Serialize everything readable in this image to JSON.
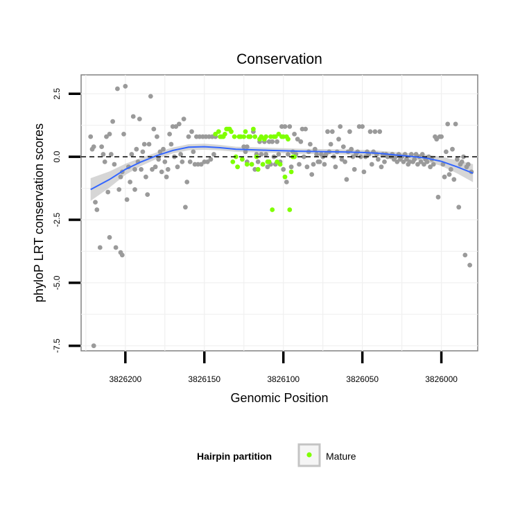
{
  "chart_data": {
    "type": "scatter",
    "title": "Conservation",
    "xlabel": "Genomic Position",
    "ylabel": "phyloP LRT conservation scores",
    "x_reversed": true,
    "xlim": [
      3825977,
      3826228
    ],
    "ylim": [
      -7.7,
      3.25
    ],
    "x_ticks": [
      3826200,
      3826150,
      3826100,
      3826050,
      3826000
    ],
    "x_tick_labels": [
      "3826200",
      "3826150",
      "3826100",
      "3826050",
      "3826000"
    ],
    "y_ticks": [
      -7.5,
      -5.0,
      -2.5,
      0.0,
      2.5
    ],
    "y_tick_labels": [
      "-7.5",
      "-5.0",
      "-2.5",
      "0.0",
      "2.5"
    ],
    "reference_line": {
      "y": 0,
      "style": "dashed"
    },
    "grid": true,
    "legend": {
      "placement": "bottom",
      "title": "Hairpin partition",
      "entries": [
        {
          "label": "Mature",
          "color": "#7fff00"
        }
      ]
    },
    "colors": {
      "other": "#9a9a9a",
      "mature": "#7fff00",
      "smooth": "#3366ff",
      "ribbon": "#c8c8c8"
    },
    "series": [
      {
        "name": "",
        "color": "#9a9a9a",
        "points": [
          [
            3826222,
            0.8
          ],
          [
            3826221,
            0.3
          ],
          [
            3826220,
            0.4
          ],
          [
            3826220,
            -7.5
          ],
          [
            3826219,
            -1.8
          ],
          [
            3826218,
            -2.1
          ],
          [
            3826216,
            -3.6
          ],
          [
            3826215,
            0.4
          ],
          [
            3826214,
            0.1
          ],
          [
            3826213,
            -0.2
          ],
          [
            3826212,
            0.8
          ],
          [
            3826211,
            -1.4
          ],
          [
            3826210,
            0.9
          ],
          [
            3826210,
            -3.2
          ],
          [
            3826209,
            0.1
          ],
          [
            3826208,
            1.4
          ],
          [
            3826207,
            -0.3
          ],
          [
            3826206,
            -3.6
          ],
          [
            3826205,
            2.7
          ],
          [
            3826204,
            -1.3
          ],
          [
            3826203,
            -0.8
          ],
          [
            3826203,
            -3.8
          ],
          [
            3826202,
            -0.6
          ],
          [
            3826202,
            -3.9
          ],
          [
            3826201,
            0.9
          ],
          [
            3826200,
            2.8
          ],
          [
            3826199,
            -1.7
          ],
          [
            3826198,
            -0.4
          ],
          [
            3826197,
            -1.0
          ],
          [
            3826196,
            0.1
          ],
          [
            3826195,
            1.6
          ],
          [
            3826194,
            -0.5
          ],
          [
            3826194,
            -1.3
          ],
          [
            3826193,
            0.3
          ],
          [
            3826192,
            -0.2
          ],
          [
            3826191,
            1.5
          ],
          [
            3826190,
            -0.5
          ],
          [
            3826189,
            0.2
          ],
          [
            3826188,
            0.5
          ],
          [
            3826187,
            -0.8
          ],
          [
            3826186,
            -1.5
          ],
          [
            3826185,
            0.5
          ],
          [
            3826184,
            2.4
          ],
          [
            3826183,
            -0.5
          ],
          [
            3826182,
            1.1
          ],
          [
            3826181,
            -0.4
          ],
          [
            3826180,
            0.8
          ],
          [
            3826179,
            -0.1
          ],
          [
            3826178,
            0.2
          ],
          [
            3826177,
            -0.6
          ],
          [
            3826176,
            0.3
          ],
          [
            3826175,
            -0.2
          ],
          [
            3826174,
            -0.8
          ],
          [
            3826173,
            -0.5
          ],
          [
            3826172,
            0.9
          ],
          [
            3826171,
            0.5
          ],
          [
            3826170,
            1.2
          ],
          [
            3826169,
            0.0
          ],
          [
            3826168,
            1.2
          ],
          [
            3826167,
            -0.4
          ],
          [
            3826166,
            1.3
          ],
          [
            3826165,
            0.1
          ],
          [
            3826164,
            -0.2
          ],
          [
            3826163,
            1.5
          ],
          [
            3826162,
            -2.0
          ],
          [
            3826161,
            -1.0
          ],
          [
            3826160,
            0.8
          ],
          [
            3826159,
            -0.2
          ],
          [
            3826158,
            1.0
          ],
          [
            3826157,
            0.2
          ],
          [
            3826156,
            -0.3
          ],
          [
            3826155,
            0.8
          ],
          [
            3826154,
            -0.3
          ],
          [
            3826153,
            0.8
          ],
          [
            3826152,
            -0.3
          ],
          [
            3826151,
            0.8
          ],
          [
            3826150,
            -0.2
          ],
          [
            3826149,
            0.8
          ],
          [
            3826148,
            -0.2
          ],
          [
            3826147,
            0.8
          ],
          [
            3826146,
            -0.1
          ],
          [
            3826145,
            0.8
          ],
          [
            3826144,
            0.1
          ],
          [
            3826143,
            0.8
          ],
          [
            3826125,
            0.4
          ],
          [
            3826124,
            0.2
          ],
          [
            3826123,
            -0.2
          ],
          [
            3826123,
            0.4
          ],
          [
            3826121,
            0.8
          ],
          [
            3826120,
            -0.3
          ],
          [
            3826119,
            1.0
          ],
          [
            3826118,
            -0.5
          ],
          [
            3826117,
            0.1
          ],
          [
            3826116,
            -0.2
          ],
          [
            3826115,
            0.6
          ],
          [
            3826114,
            0.1
          ],
          [
            3826113,
            -0.3
          ],
          [
            3826112,
            0.6
          ],
          [
            3826111,
            0.1
          ],
          [
            3826110,
            -0.4
          ],
          [
            3826109,
            0.6
          ],
          [
            3826108,
            -0.3
          ],
          [
            3826107,
            0.6
          ],
          [
            3826106,
            0.0
          ],
          [
            3826105,
            -0.3
          ],
          [
            3826104,
            0.6
          ],
          [
            3826103,
            0.1
          ],
          [
            3826102,
            -0.2
          ],
          [
            3826101,
            1.2
          ],
          [
            3826100,
            -0.5
          ],
          [
            3826099,
            1.2
          ],
          [
            3826098,
            -1.0
          ],
          [
            3826097,
            0.1
          ],
          [
            3826096,
            1.2
          ],
          [
            3826095,
            -0.4
          ],
          [
            3826094,
            0.2
          ],
          [
            3826093,
            0.9
          ],
          [
            3826092,
            0.1
          ],
          [
            3826091,
            0.7
          ],
          [
            3826090,
            -0.3
          ],
          [
            3826089,
            0.6
          ],
          [
            3826088,
            1.1
          ],
          [
            3826087,
            0.0
          ],
          [
            3826086,
            1.1
          ],
          [
            3826085,
            -0.4
          ],
          [
            3826084,
            0.2
          ],
          [
            3826083,
            0.5
          ],
          [
            3826082,
            -0.7
          ],
          [
            3826081,
            -0.3
          ],
          [
            3826080,
            0.3
          ],
          [
            3826079,
            0.1
          ],
          [
            3826078,
            -0.2
          ],
          [
            3826077,
            -0.2
          ],
          [
            3826076,
            0.1
          ],
          [
            3826075,
            0.0
          ],
          [
            3826074,
            -0.3
          ],
          [
            3826073,
            0.1
          ],
          [
            3826072,
            1.0
          ],
          [
            3826071,
            0.2
          ],
          [
            3826070,
            0.5
          ],
          [
            3826069,
            1.0
          ],
          [
            3826068,
            0.0
          ],
          [
            3826067,
            -0.4
          ],
          [
            3826066,
            0.2
          ],
          [
            3826065,
            0.7
          ],
          [
            3826064,
            1.2
          ],
          [
            3826063,
            -0.1
          ],
          [
            3826062,
            0.4
          ],
          [
            3826061,
            -0.2
          ],
          [
            3826060,
            -0.9
          ],
          [
            3826059,
            0.2
          ],
          [
            3826058,
            1.0
          ],
          [
            3826057,
            0.3
          ],
          [
            3826056,
            0.0
          ],
          [
            3826055,
            -0.5
          ],
          [
            3826054,
            0.1
          ],
          [
            3826053,
            0.2
          ],
          [
            3826052,
            1.2
          ],
          [
            3826051,
            0.0
          ],
          [
            3826050,
            1.2
          ],
          [
            3826049,
            -0.6
          ],
          [
            3826048,
            0.0
          ],
          [
            3826047,
            0.2
          ],
          [
            3826046,
            0.1
          ],
          [
            3826045,
            1.0
          ],
          [
            3826044,
            -0.3
          ],
          [
            3826043,
            0.2
          ],
          [
            3826042,
            1.0
          ],
          [
            3826041,
            0.1
          ],
          [
            3826040,
            -0.1
          ],
          [
            3826039,
            1.0
          ],
          [
            3826038,
            -0.4
          ],
          [
            3826037,
            0.1
          ],
          [
            3826036,
            -0.2
          ],
          [
            3826035,
            0.1
          ],
          [
            3826034,
            0.0
          ],
          [
            3826032,
            0.0
          ],
          [
            3826031,
            0.1
          ],
          [
            3826030,
            -0.1
          ],
          [
            3826029,
            0.0
          ],
          [
            3826028,
            -0.2
          ],
          [
            3826027,
            0.1
          ],
          [
            3826026,
            -0.1
          ],
          [
            3826025,
            0.0
          ],
          [
            3826024,
            -0.2
          ],
          [
            3826023,
            0.1
          ],
          [
            3826022,
            -0.1
          ],
          [
            3826021,
            -0.3
          ],
          [
            3826020,
            -0.2
          ],
          [
            3826019,
            0.1
          ],
          [
            3826018,
            -0.2
          ],
          [
            3826017,
            -0.1
          ],
          [
            3826016,
            0.1
          ],
          [
            3826015,
            -0.3
          ],
          [
            3826014,
            0.0
          ],
          [
            3826013,
            -0.2
          ],
          [
            3826012,
            0.1
          ],
          [
            3826011,
            -0.3
          ],
          [
            3826010,
            -0.1
          ],
          [
            3826009,
            -0.2
          ],
          [
            3826008,
            0.0
          ],
          [
            3826007,
            -0.4
          ],
          [
            3826006,
            -0.1
          ],
          [
            3826005,
            -0.3
          ],
          [
            3826004,
            0.8
          ],
          [
            3826003,
            0.7
          ],
          [
            3826002,
            -1.6
          ],
          [
            3826001,
            0.8
          ],
          [
            3826000,
            0.8
          ],
          [
            3825999,
            -0.3
          ],
          [
            3825998,
            -0.8
          ],
          [
            3825997,
            0.2
          ],
          [
            3825996,
            1.3
          ],
          [
            3825995,
            -0.7
          ],
          [
            3825994,
            -0.5
          ],
          [
            3825993,
            0.3
          ],
          [
            3825992,
            -0.9
          ],
          [
            3825991,
            1.3
          ],
          [
            3825990,
            -0.1
          ],
          [
            3825989,
            -2.0
          ],
          [
            3825988,
            -0.3
          ],
          [
            3825987,
            -0.2
          ],
          [
            3825986,
            0.0
          ],
          [
            3825985,
            -3.9
          ],
          [
            3825984,
            -0.4
          ],
          [
            3825983,
            -0.3
          ],
          [
            3825982,
            -4.3
          ],
          [
            3825981,
            -0.6
          ]
        ]
      },
      {
        "name": "Mature",
        "color": "#7fff00",
        "points": [
          [
            3826143,
            0.9
          ],
          [
            3826141,
            1.0
          ],
          [
            3826140,
            0.8
          ],
          [
            3826139,
            0.8
          ],
          [
            3826138,
            0.8
          ],
          [
            3826137,
            0.9
          ],
          [
            3826136,
            1.1
          ],
          [
            3826135,
            1.1
          ],
          [
            3826134,
            1.1
          ],
          [
            3826133,
            1.0
          ],
          [
            3826132,
            -0.2
          ],
          [
            3826131,
            0.8
          ],
          [
            3826130,
            0.0
          ],
          [
            3826129,
            -0.4
          ],
          [
            3826128,
            0.8
          ],
          [
            3826127,
            0.8
          ],
          [
            3826126,
            -0.1
          ],
          [
            3826125,
            0.8
          ],
          [
            3826124,
            1.0
          ],
          [
            3826123,
            -0.3
          ],
          [
            3826122,
            0.8
          ],
          [
            3826121,
            0.8
          ],
          [
            3826120,
            -0.3
          ],
          [
            3826119,
            1.1
          ],
          [
            3826118,
            0.8
          ],
          [
            3826117,
            0.0
          ],
          [
            3826116,
            -0.5
          ],
          [
            3826115,
            0.7
          ],
          [
            3826114,
            0.8
          ],
          [
            3826113,
            -0.3
          ],
          [
            3826112,
            0.7
          ],
          [
            3826111,
            0.8
          ],
          [
            3826110,
            -0.2
          ],
          [
            3826109,
            -0.2
          ],
          [
            3826108,
            0.8
          ],
          [
            3826107,
            -2.1
          ],
          [
            3826106,
            0.8
          ],
          [
            3826105,
            0.8
          ],
          [
            3826104,
            -0.2
          ],
          [
            3826103,
            0.9
          ],
          [
            3826102,
            -0.3
          ],
          [
            3826101,
            0.8
          ],
          [
            3826100,
            0.8
          ],
          [
            3826099,
            -0.8
          ],
          [
            3826098,
            0.8
          ],
          [
            3826097,
            0.7
          ],
          [
            3826096,
            -2.1
          ],
          [
            3826095,
            -0.6
          ],
          [
            3826094,
            0.0
          ],
          [
            3826093,
            0.0
          ]
        ]
      }
    ],
    "smooth": {
      "x": [
        3826222,
        3826210,
        3826200,
        3826190,
        3826180,
        3826170,
        3826160,
        3826150,
        3826140,
        3826130,
        3826120,
        3826110,
        3826100,
        3826090,
        3826080,
        3826070,
        3826060,
        3826050,
        3826040,
        3826030,
        3826020,
        3826010,
        3826000,
        3825990,
        3825980
      ],
      "y": [
        -1.3,
        -0.9,
        -0.5,
        -0.2,
        0.05,
        0.25,
        0.38,
        0.4,
        0.36,
        0.3,
        0.28,
        0.26,
        0.24,
        0.22,
        0.21,
        0.2,
        0.19,
        0.17,
        0.14,
        0.08,
        0.02,
        -0.05,
        -0.18,
        -0.4,
        -0.65
      ],
      "ribbon_half_width": [
        0.45,
        0.32,
        0.22,
        0.16,
        0.13,
        0.12,
        0.12,
        0.12,
        0.11,
        0.1,
        0.1,
        0.1,
        0.1,
        0.1,
        0.1,
        0.1,
        0.1,
        0.1,
        0.1,
        0.11,
        0.12,
        0.14,
        0.18,
        0.26,
        0.36
      ]
    }
  }
}
